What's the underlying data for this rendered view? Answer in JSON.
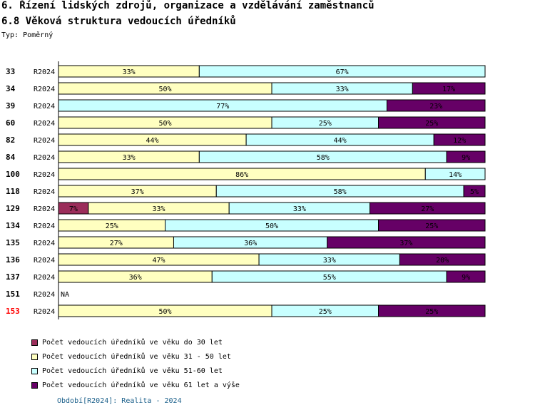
{
  "header": {
    "title_line1": "6. Řízení lidských zdrojů, organizace a vzdělávání zaměstnanců",
    "title_line2": "6.8 Věková struktura vedoucích úředníků",
    "type_label": "Typ: Poměrný"
  },
  "colors": {
    "c0": "#9b2d5a",
    "c1": "#ffffc0",
    "c2": "#c8ffff",
    "c3": "#660066",
    "highlight": "#ff0000",
    "footer": "#1a5f8a"
  },
  "chart_data": {
    "type": "bar",
    "orientation": "horizontal",
    "stacked": true,
    "xlim": [
      0,
      100
    ],
    "unit": "%",
    "period": "R2024",
    "categories": [
      "33",
      "34",
      "39",
      "60",
      "82",
      "84",
      "100",
      "118",
      "129",
      "134",
      "135",
      "136",
      "137",
      "151",
      "153"
    ],
    "highlighted_category": "153",
    "series": [
      {
        "name": "Počet vedoucích úředníků ve věku do 30 let",
        "color": "#9b2d5a",
        "values": [
          0,
          0,
          0,
          0,
          0,
          0,
          0,
          0,
          7,
          0,
          0,
          0,
          0,
          null,
          0
        ]
      },
      {
        "name": "Počet vedoucích úředníků ve věku 31 - 50 let",
        "color": "#ffffc0",
        "values": [
          33,
          50,
          0,
          50,
          44,
          33,
          86,
          37,
          33,
          25,
          27,
          47,
          36,
          null,
          50
        ]
      },
      {
        "name": "Počet vedoucích úředníků ve věku 51-60 let",
        "color": "#c8ffff",
        "values": [
          67,
          33,
          77,
          25,
          44,
          58,
          14,
          58,
          33,
          50,
          36,
          33,
          55,
          null,
          25
        ]
      },
      {
        "name": "Počet vedoucích úředníků ve věku 61 let a výše",
        "color": "#660066",
        "values": [
          0,
          17,
          23,
          25,
          12,
          9,
          0,
          5,
          27,
          25,
          37,
          20,
          9,
          null,
          25
        ]
      }
    ],
    "na_label": "NA"
  },
  "footer": {
    "text": "Období[R2024]: Realita - 2024"
  }
}
